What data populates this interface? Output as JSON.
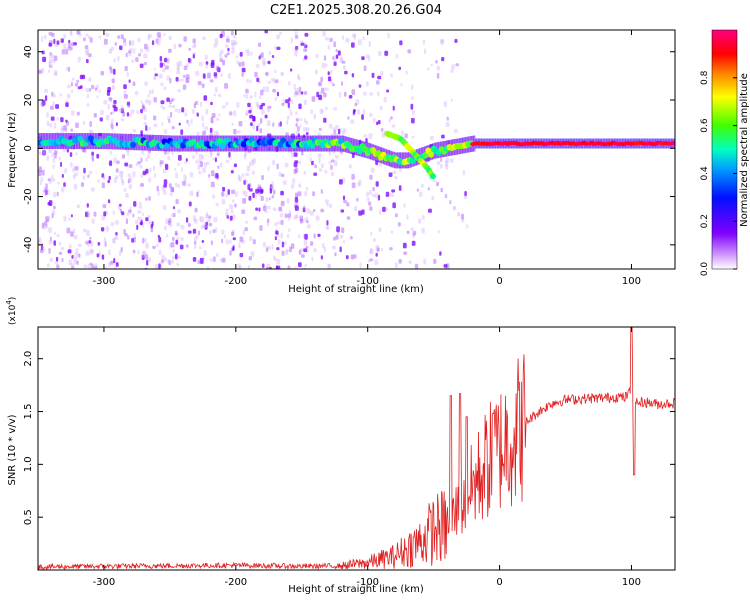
{
  "figure_title": "C2E1.2025.308.20.26.G04",
  "chart_data": [
    {
      "type": "heatmap",
      "title": "C2E1.2025.308.20.26.G04",
      "xlabel": "Height of straight line (km)",
      "ylabel": "Frequency (Hz)",
      "xlim": [
        -350,
        133
      ],
      "ylim": [
        -50,
        49
      ],
      "x_ticks": [
        -300,
        -200,
        -100,
        0,
        100
      ],
      "x_tick_labels": [
        "-300",
        "-200",
        "-100",
        "0",
        "100"
      ],
      "y_ticks": [
        -40,
        -20,
        0,
        20,
        40
      ],
      "y_tick_labels": [
        "-40",
        "-20",
        "0",
        "20",
        "40"
      ],
      "colorbar": {
        "label": "Normalized spectral amplitude",
        "range": [
          0,
          1
        ],
        "ticks": [
          0.0,
          0.2,
          0.4,
          0.6,
          0.8
        ],
        "tick_labels": [
          "0.0",
          "0.2",
          "0.4",
          "0.6",
          "0.8"
        ],
        "colormap": [
          "#ffffff",
          "#cc88ff",
          "#8000ff",
          "#0000ff",
          "#00c8ff",
          "#00ff80",
          "#80ff00",
          "#ffff00",
          "#ff8000",
          "#ff0000",
          "#ff0080"
        ]
      },
      "ridge": {
        "description": "dominant frequency track",
        "x": [
          -350,
          -300,
          -250,
          -200,
          -150,
          -120,
          -100,
          -90,
          -80,
          -70,
          -60,
          -50,
          -40,
          -30,
          -20,
          0,
          20,
          50,
          100,
          133
        ],
        "y": [
          3,
          3,
          2,
          2,
          2,
          2,
          -1,
          -3,
          -5,
          -5,
          -3,
          -1,
          0,
          1,
          2,
          2,
          2,
          2,
          2,
          2
        ],
        "branch": {
          "x": [
            -85,
            -75,
            -65,
            -55,
            -50
          ],
          "y": [
            6,
            4,
            -2,
            -8,
            -12
          ]
        }
      }
    },
    {
      "type": "line",
      "xlabel": "Height of straight line (km)",
      "ylabel": "SNR (10 * v/v)",
      "y_scale_label": "(x10",
      "y_scale_exp": "4",
      "y_scale_suffix": ")",
      "xlim": [
        -350,
        133
      ],
      "ylim": [
        0,
        23000
      ],
      "x_ticks": [
        -300,
        -200,
        -100,
        0,
        100
      ],
      "x_tick_labels": [
        "-300",
        "-200",
        "-100",
        "0",
        "100"
      ],
      "y_ticks": [
        5000,
        10000,
        15000,
        20000
      ],
      "y_tick_labels": [
        "0.5",
        "1.0",
        "1.5",
        "2.0"
      ],
      "color": "#e02020",
      "series": [
        {
          "name": "SNR",
          "x": [
            -350,
            -300,
            -250,
            -200,
            -150,
            -120,
            -100,
            -80,
            -60,
            -50,
            -40,
            -30,
            -20,
            -10,
            0,
            10,
            20,
            30,
            40,
            50,
            60,
            80,
            90,
            95,
            100,
            103,
            105,
            110,
            120,
            133
          ],
          "y": [
            300,
            350,
            400,
            450,
            350,
            400,
            700,
            1300,
            2700,
            3800,
            4200,
            6000,
            8000,
            10000,
            11500,
            13000,
            14000,
            15000,
            15800,
            16100,
            16200,
            16300,
            16400,
            16300,
            17000,
            16000,
            15800,
            15900,
            15700,
            15800
          ],
          "spikes": [
            {
              "x": -37,
              "y": 16500
            },
            {
              "x": -30,
              "y": 16700
            },
            {
              "x": -25,
              "y": 14500
            },
            {
              "x": -5,
              "y": 14800
            },
            {
              "x": 100,
              "y": 23000
            },
            {
              "x": 102,
              "y": 9000
            }
          ]
        }
      ]
    }
  ]
}
